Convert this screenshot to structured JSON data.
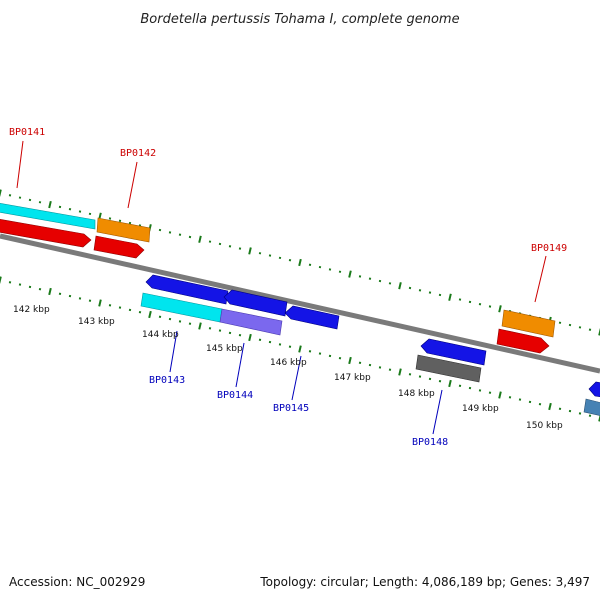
{
  "title": "Bordetella pertussis Tohama I, complete genome",
  "footer": {
    "accession": "Accession: NC_002929",
    "summary": "Topology: circular; Length: 4,086,189 bp; Genes: 3,497"
  },
  "colors": {
    "backbone": "#7a7a7a",
    "tick": "#1a7a1a",
    "forward_label": "#cc0000",
    "reverse_label": "#0000bb",
    "cyan": "#00e5ee",
    "orange": "#f08c00",
    "red": "#e60000",
    "blue": "#1414e6",
    "slate": "#7b68ee",
    "gray": "#606060",
    "steel": "#4682b4"
  },
  "scale_labels": [
    "142 kbp",
    "143 kbp",
    "144 kbp",
    "145 kbp",
    "146 kbp",
    "147 kbp",
    "148 kbp",
    "149 kbp",
    "150 kbp"
  ],
  "genes": [
    {
      "id": "BP0141",
      "strand": "forward"
    },
    {
      "id": "BP0142",
      "strand": "forward"
    },
    {
      "id": "BP0143",
      "strand": "reverse"
    },
    {
      "id": "BP0144",
      "strand": "reverse"
    },
    {
      "id": "BP0145",
      "strand": "reverse"
    },
    {
      "id": "BP0148",
      "strand": "reverse"
    },
    {
      "id": "BP0149",
      "strand": "forward"
    }
  ]
}
